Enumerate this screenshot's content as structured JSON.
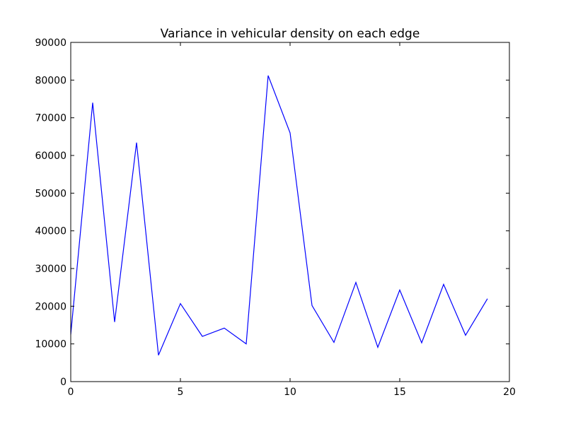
{
  "chart_data": {
    "type": "line",
    "title": "Variance in vehicular density on each edge",
    "xlabel": "",
    "ylabel": "",
    "xlim": [
      0,
      20
    ],
    "ylim": [
      0,
      90000
    ],
    "x_ticks": [
      0,
      5,
      10,
      15,
      20
    ],
    "y_ticks": [
      0,
      10000,
      20000,
      30000,
      40000,
      50000,
      60000,
      70000,
      80000,
      90000
    ],
    "grid": false,
    "series": [
      {
        "color": "#0000ff",
        "x": [
          0,
          1,
          2,
          3,
          4,
          5,
          6,
          7,
          8,
          9,
          10,
          11,
          12,
          13,
          14,
          15,
          16,
          17,
          18,
          19
        ],
        "values": [
          12500,
          74000,
          15800,
          63400,
          7000,
          20700,
          12000,
          14200,
          10000,
          81200,
          66000,
          20200,
          10400,
          26300,
          9100,
          24300,
          10300,
          25800,
          12300,
          22000
        ]
      }
    ]
  }
}
